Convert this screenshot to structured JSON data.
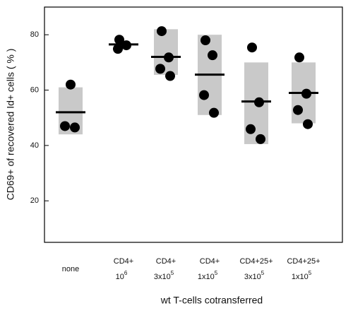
{
  "chart_data": {
    "type": "dotplot",
    "x_label": "wt T-cells cotransferred",
    "y_label": "CD69+ of recovered Id+ cells ( % )",
    "ylim": [
      5,
      90
    ],
    "yticks": [
      20,
      40,
      60,
      80
    ],
    "box_color": "#c9c9c9",
    "point_color": "#000000",
    "groups": [
      {
        "label": "none",
        "points": [
          62,
          47,
          46.5
        ],
        "mean": 52,
        "range": [
          44,
          61
        ]
      },
      {
        "label": "CD4+",
        "base": "10",
        "exp": "6",
        "points": [
          78.2,
          76.2,
          74.9
        ],
        "mean": 76.5,
        "range": null
      },
      {
        "label": "CD4+",
        "base": "3x10",
        "exp": "5",
        "points": [
          81.3,
          71.8,
          67.7,
          65.1
        ],
        "mean": 72,
        "range": [
          65.5,
          82
        ]
      },
      {
        "label": "CD4+",
        "base": "1x10",
        "exp": "5",
        "points": [
          78,
          72.6,
          58.2,
          51.8
        ],
        "mean": 65.6,
        "range": [
          51,
          80
        ]
      },
      {
        "label": "CD4+25+",
        "base": "3x10",
        "exp": "5",
        "points": [
          75.4,
          55.6,
          45.9,
          42.3
        ],
        "mean": 55.9,
        "range": [
          40.5,
          70
        ]
      },
      {
        "label": "CD4+25+",
        "base": "1x10",
        "exp": "5",
        "points": [
          71.8,
          58.7,
          52.8,
          47.7
        ],
        "mean": 59,
        "range": [
          48,
          70
        ]
      }
    ]
  }
}
